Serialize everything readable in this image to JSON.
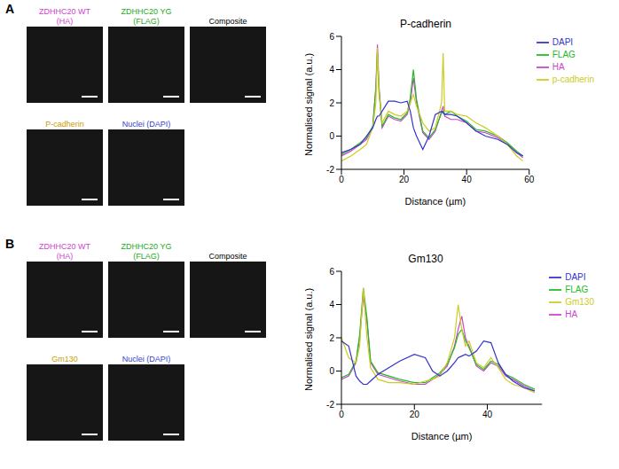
{
  "panels": [
    {
      "label": "A",
      "image_titles": [
        {
          "lines": [
            "ZDHHC20 WT",
            "(HA)"
          ],
          "color": "#cc44cc"
        },
        {
          "lines": [
            "ZDHHC20 YG",
            "(FLAG)"
          ],
          "color": "#22aa22"
        },
        {
          "lines": [
            "Composite"
          ],
          "color": "#000000"
        },
        {
          "lines": [
            "P-cadherin"
          ],
          "color": "#c8a000"
        },
        {
          "lines": [
            "Nuclei (DAPI)"
          ],
          "color": "#3344cc"
        }
      ]
    },
    {
      "label": "B",
      "image_titles": [
        {
          "lines": [
            "ZDHHC20 WT",
            "(HA)"
          ],
          "color": "#cc44cc"
        },
        {
          "lines": [
            "ZDHHC20 YG",
            "(FLAG)"
          ],
          "color": "#22aa22"
        },
        {
          "lines": [
            "Composite"
          ],
          "color": "#000000"
        },
        {
          "lines": [
            "Gm130"
          ],
          "color": "#c8a000"
        },
        {
          "lines": [
            "Nuclei (DAPI)"
          ],
          "color": "#3344cc"
        }
      ]
    }
  ],
  "chart_data": [
    {
      "type": "line",
      "title": "P-cadherin",
      "x_label": "Distance (µm)",
      "y_label": "Normalised signal (a.u.)",
      "legend": "right",
      "grid": false,
      "marker": "none",
      "xlim": [
        0,
        60
      ],
      "xticks": [
        0,
        20,
        40,
        60
      ],
      "ylim": [
        -2,
        6
      ],
      "yticks": [
        -2,
        0,
        2,
        4,
        6
      ],
      "x": [
        0,
        3,
        6,
        8,
        10,
        11,
        11.5,
        12,
        13,
        15,
        17,
        19,
        21,
        22,
        23,
        24,
        26,
        28,
        30,
        32,
        32.5,
        33,
        35,
        37,
        40,
        43,
        46,
        50,
        53,
        56,
        58
      ],
      "series": [
        {
          "name": "HA",
          "color": "#cc44cc",
          "values": [
            -1.2,
            -0.9,
            -0.5,
            -0.2,
            0.5,
            3,
            5.5,
            3,
            0.5,
            1.2,
            1.0,
            0.9,
            1.3,
            2.0,
            3.5,
            2.0,
            0.2,
            -0.2,
            0.3,
            1.5,
            1.8,
            1.2,
            1.0,
            1.0,
            0.8,
            0.3,
            0.2,
            -0.1,
            -0.5,
            -1.0,
            -1.3
          ]
        },
        {
          "name": "FLAG",
          "color": "#22bb22",
          "values": [
            -1.1,
            -0.8,
            -0.4,
            -0.1,
            0.6,
            2.8,
            5.0,
            2.8,
            0.6,
            1.3,
            1.1,
            1.0,
            1.4,
            2.3,
            4.0,
            2.2,
            0.3,
            -0.1,
            0.4,
            1.4,
            1.5,
            1.3,
            1.5,
            1.2,
            0.9,
            0.4,
            0.3,
            0.0,
            -0.4,
            -0.9,
            -1.2
          ]
        },
        {
          "name": "p-cadherin",
          "color": "#cccc22",
          "values": [
            -1.5,
            -1.2,
            -0.8,
            -0.5,
            0.5,
            2,
            5.3,
            2.5,
            0.8,
            1.5,
            1.3,
            1.2,
            1.5,
            2.0,
            2.5,
            1.8,
            0.8,
            0.3,
            0.5,
            2,
            5,
            1.5,
            1.5,
            1.3,
            1.2,
            0.8,
            0.5,
            0.0,
            -0.5,
            -1.2,
            -1.5
          ]
        },
        {
          "name": "DAPI",
          "color": "#3333cc",
          "values": [
            -1.0,
            -0.8,
            -0.5,
            0,
            0.5,
            1.0,
            1.2,
            1.2,
            1.5,
            2.1,
            2.1,
            2.0,
            2.1,
            1.5,
            0.5,
            0.0,
            -0.8,
            0.0,
            1.3,
            1.5,
            1.4,
            1.3,
            1.3,
            1.2,
            0.8,
            0.3,
            0.0,
            -0.2,
            -0.5,
            -1.0,
            -1.2
          ]
        }
      ]
    },
    {
      "type": "line",
      "title": "Gm130",
      "x_label": "Distance (µm)",
      "y_label": "Normalised signal (a.u.)",
      "legend": "right",
      "grid": false,
      "marker": "none",
      "xlim": [
        0,
        55
      ],
      "xticks": [
        0,
        20,
        40
      ],
      "ylim": [
        -2,
        6
      ],
      "yticks": [
        -2,
        0,
        2,
        4,
        6
      ],
      "x": [
        0,
        2,
        4,
        5,
        6,
        7,
        8,
        10,
        13,
        16,
        20,
        23,
        25,
        27,
        29,
        31,
        32,
        33,
        34,
        35,
        37,
        39,
        41,
        43,
        45,
        47,
        50,
        53
      ],
      "series": [
        {
          "name": "HA",
          "color": "#cc44cc",
          "values": [
            -0.5,
            -0.3,
            0.5,
            2,
            4.5,
            3,
            0.5,
            -0.2,
            -0.4,
            -0.6,
            -0.8,
            -0.8,
            -0.5,
            -0.2,
            0.3,
            1.5,
            2.5,
            3.3,
            2.0,
            1.5,
            0.3,
            0.0,
            0.5,
            0.3,
            -0.3,
            -0.5,
            -0.9,
            -1.2
          ]
        },
        {
          "name": "FLAG",
          "color": "#22bb22",
          "values": [
            -0.4,
            -0.2,
            0.6,
            2.2,
            5.0,
            3.2,
            0.6,
            -0.1,
            -0.3,
            -0.5,
            -0.7,
            -0.7,
            -0.4,
            -0.1,
            0.4,
            1.4,
            2.2,
            2.5,
            1.8,
            1.4,
            0.4,
            0.1,
            0.6,
            0.4,
            -0.2,
            -0.4,
            -0.8,
            -1.1
          ]
        },
        {
          "name": "Gm130",
          "color": "#cccc22",
          "values": [
            2.0,
            0.8,
            0.5,
            1.5,
            5.0,
            2,
            0.2,
            -0.5,
            -0.7,
            -0.7,
            -0.8,
            -0.6,
            -0.5,
            -0.3,
            0.5,
            2,
            4.0,
            2.5,
            1.5,
            1.8,
            0.5,
            0.2,
            0.8,
            0.2,
            -0.5,
            -0.8,
            -1.0,
            -1.3
          ]
        },
        {
          "name": "DAPI",
          "color": "#3333cc",
          "values": [
            1.8,
            1.5,
            -0.3,
            -0.6,
            -0.8,
            -0.8,
            -0.6,
            -0.2,
            0.2,
            0.6,
            1.0,
            0.8,
            0.0,
            -0.3,
            0.0,
            0.5,
            0.8,
            0.9,
            1.0,
            0.9,
            1.2,
            1.8,
            1.7,
            0.5,
            -0.2,
            -0.6,
            -1.0,
            -1.2
          ]
        }
      ]
    }
  ]
}
